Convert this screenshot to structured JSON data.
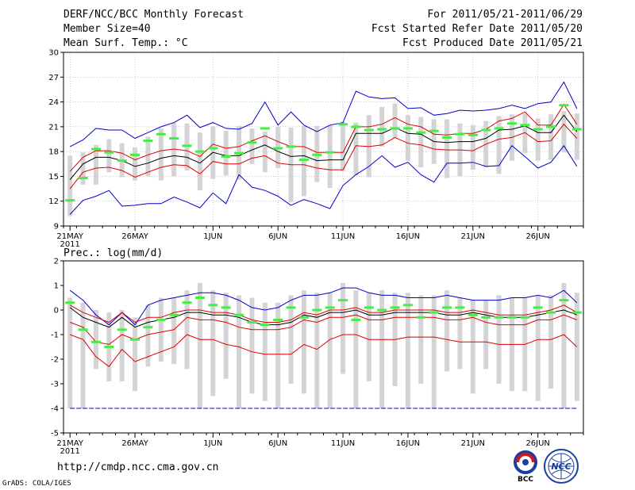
{
  "header": {
    "title": "DERF/NCC/BCC Monthly Forecast",
    "member_size": "Member Size=40",
    "variable": "Mean Surf. Temp.: °C",
    "forecast_for": "For 2011/05/21-2011/06/29",
    "started_date": "Fcst Started Refer Date 2011/05/20",
    "produced_date": "Fcst Produced Date 2011/05/21"
  },
  "precip_label": "Prec.: log(mm/d)",
  "footer": {
    "url": "http://cmdp.ncc.cma.gov.cn",
    "grads": "GrADS: COLA/IGES",
    "logo_bcc": "BCC",
    "logo_ncc": "NCC"
  },
  "colors": {
    "box": "#d4d4d6",
    "median": "#000000",
    "quartile": "#dd0000",
    "extreme": "#0000cc",
    "obs": "#44ee44",
    "grid": "#aaaaaa"
  },
  "chart_data": [
    {
      "type": "line",
      "name": "temperature",
      "ylabel": "Mean Surf. Temp.: °C",
      "ylim": [
        9,
        30
      ],
      "yticks": [
        9,
        12,
        15,
        18,
        21,
        24,
        27,
        30
      ],
      "x_days": 40,
      "xtick_labels": [
        "21MAY",
        "26MAY",
        "1JUN",
        "6JUN",
        "11JUN",
        "16JUN",
        "21JUN",
        "26JUN"
      ],
      "xtick_days": [
        0,
        5,
        11,
        16,
        21,
        26,
        31,
        36
      ],
      "year_label": "2011",
      "grid": true,
      "series": [
        {
          "name": "median",
          "values": [
            14.6,
            16.5,
            17.3,
            17.3,
            16.9,
            16.2,
            16.6,
            17.2,
            17.5,
            17.3,
            16.6,
            17.9,
            17.5,
            17.5,
            18.2,
            18.8,
            18.0,
            17.4,
            17.5,
            16.9,
            17.0,
            17.0,
            20.2,
            20.2,
            20.2,
            20.9,
            20.2,
            20.1,
            19.2,
            19.1,
            19.2,
            19.2,
            19.6,
            20.6,
            20.7,
            21.1,
            20.3,
            20.3,
            22.4,
            20.4
          ]
        },
        {
          "name": "q_upper",
          "values": [
            15.6,
            17.3,
            18.1,
            18.1,
            17.8,
            17.0,
            17.6,
            18.1,
            18.3,
            18.1,
            17.4,
            18.9,
            18.4,
            18.6,
            19.3,
            19.9,
            19.2,
            18.6,
            18.6,
            17.9,
            17.9,
            17.9,
            21.0,
            21.0,
            21.3,
            22.1,
            21.3,
            21.0,
            20.1,
            20.0,
            20.2,
            20.2,
            20.7,
            21.7,
            22.0,
            22.8,
            21.2,
            21.2,
            23.7,
            21.3
          ]
        },
        {
          "name": "q_lower",
          "values": [
            13.5,
            15.5,
            16.0,
            16.1,
            15.7,
            14.9,
            15.5,
            16.1,
            16.4,
            16.3,
            15.3,
            16.8,
            16.5,
            16.5,
            17.2,
            17.5,
            16.6,
            16.4,
            16.4,
            16.0,
            15.8,
            15.8,
            18.7,
            18.6,
            18.8,
            19.7,
            19.0,
            18.8,
            18.3,
            18.2,
            18.2,
            18.1,
            18.9,
            19.5,
            19.7,
            20.3,
            19.2,
            19.3,
            21.3,
            19.6
          ]
        },
        {
          "name": "max",
          "values": [
            18.6,
            19.4,
            20.8,
            20.6,
            20.6,
            19.6,
            20.3,
            21.0,
            21.5,
            22.4,
            20.9,
            21.5,
            20.8,
            20.7,
            21.4,
            24.0,
            21.2,
            22.8,
            21.2,
            20.4,
            21.2,
            21.5,
            25.3,
            24.6,
            24.4,
            24.5,
            23.2,
            23.3,
            22.4,
            22.6,
            23.0,
            22.9,
            23.0,
            23.2,
            23.6,
            23.2,
            23.8,
            24.0,
            26.4,
            23.2
          ]
        },
        {
          "name": "min",
          "values": [
            10.4,
            12.1,
            12.6,
            13.3,
            11.4,
            11.5,
            11.7,
            11.7,
            12.5,
            11.9,
            11.2,
            13.0,
            11.7,
            15.2,
            13.7,
            13.3,
            12.6,
            11.5,
            12.2,
            11.7,
            11.1,
            13.9,
            15.2,
            16.2,
            17.5,
            16.1,
            16.7,
            15.2,
            14.3,
            16.6,
            16.6,
            16.7,
            16.2,
            16.3,
            18.7,
            17.4,
            16.0,
            16.7,
            18.7,
            16.2
          ]
        },
        {
          "name": "box_high",
          "values": [
            17.5,
            17.9,
            18.8,
            19.5,
            19.0,
            18.5,
            19.8,
            20.8,
            21.5,
            21.4,
            20.3,
            21.0,
            20.5,
            21.1,
            20.8,
            20.4,
            21.0,
            20.9,
            21.1,
            21.1,
            21.2,
            21.6,
            21.5,
            22.4,
            23.4,
            23.8,
            22.4,
            22.2,
            21.9,
            21.9,
            21.4,
            21.2,
            21.7,
            22.3,
            22.5,
            22.6,
            22.0,
            22.5,
            22.9,
            22.6
          ]
        },
        {
          "name": "box_low",
          "values": [
            10.2,
            14.0,
            14.0,
            15.5,
            14.9,
            14.5,
            15.0,
            14.5,
            15.0,
            15.7,
            13.3,
            14.7,
            15.1,
            14.6,
            16.5,
            15.5,
            16.0,
            11.9,
            12.6,
            14.3,
            13.6,
            15.6,
            15.1,
            14.9,
            18.6,
            19.6,
            16.9,
            16.1,
            16.5,
            14.8,
            15.0,
            15.8,
            16.1,
            15.3,
            16.9,
            17.8,
            16.9,
            17.0,
            17.9,
            17.0
          ]
        },
        {
          "name": "observed",
          "values": [
            12.1,
            14.8,
            18.3,
            17.9,
            16.9,
            17.6,
            19.3,
            20.1,
            19.6,
            18.7,
            18.0,
            18.4,
            17.4,
            17.8,
            19.1,
            20.8,
            18.4,
            18.6,
            17.0,
            17.6,
            17.9,
            21.3,
            21.0,
            20.6,
            20.7,
            20.8,
            20.8,
            20.3,
            20.5,
            19.7,
            20.1,
            20.0,
            20.6,
            20.8,
            21.4,
            21.2,
            20.7,
            21.0,
            23.6,
            20.7
          ]
        }
      ]
    },
    {
      "type": "line",
      "name": "precipitation",
      "ylabel": "Prec.: log(mm/d)",
      "ylim": [
        -5,
        2
      ],
      "yticks": [
        -5,
        -4,
        -3,
        -2,
        -1,
        0,
        1,
        2
      ],
      "x_days": 40,
      "xtick_labels": [
        "21MAY",
        "26MAY",
        "1JUN",
        "6JUN",
        "11JUN",
        "16JUN",
        "21JUN",
        "26JUN"
      ],
      "xtick_days": [
        0,
        5,
        11,
        16,
        21,
        26,
        31,
        36
      ],
      "year_label": "2011",
      "grid": false,
      "series": [
        {
          "name": "median",
          "values": [
            0.1,
            -0.3,
            -0.5,
            -0.7,
            -0.3,
            -0.7,
            -0.5,
            -0.4,
            -0.3,
            -0.1,
            -0.1,
            -0.2,
            -0.2,
            -0.3,
            -0.5,
            -0.6,
            -0.6,
            -0.5,
            -0.2,
            -0.3,
            -0.1,
            -0.1,
            0.0,
            -0.2,
            -0.2,
            -0.1,
            -0.1,
            -0.1,
            -0.1,
            -0.2,
            -0.2,
            -0.1,
            -0.2,
            -0.3,
            -0.3,
            -0.3,
            -0.2,
            -0.1,
            0.0,
            -0.2
          ]
        },
        {
          "name": "q_upper",
          "values": [
            0.2,
            -0.1,
            -0.3,
            -0.5,
            -0.1,
            -0.5,
            -0.3,
            -0.3,
            -0.1,
            0.0,
            0.0,
            -0.1,
            -0.1,
            -0.2,
            -0.4,
            -0.5,
            -0.5,
            -0.4,
            -0.1,
            -0.2,
            0.0,
            0.0,
            0.1,
            -0.1,
            -0.1,
            0.0,
            0.0,
            0.0,
            0.0,
            -0.1,
            -0.1,
            0.0,
            -0.1,
            -0.2,
            -0.2,
            -0.2,
            -0.1,
            0.0,
            0.2,
            -0.1
          ]
        },
        {
          "name": "q_lower",
          "values": [
            -0.5,
            -0.7,
            -1.3,
            -1.4,
            -1.0,
            -1.2,
            -1.0,
            -0.9,
            -0.8,
            -0.3,
            -0.4,
            -0.4,
            -0.5,
            -0.7,
            -0.8,
            -0.8,
            -0.8,
            -0.7,
            -0.4,
            -0.5,
            -0.3,
            -0.3,
            -0.2,
            -0.4,
            -0.4,
            -0.3,
            -0.3,
            -0.3,
            -0.3,
            -0.4,
            -0.4,
            -0.3,
            -0.5,
            -0.6,
            -0.6,
            -0.6,
            -0.4,
            -0.4,
            -0.2,
            -0.4
          ]
        },
        {
          "name": "p10",
          "values": [
            -1.0,
            -1.2,
            -1.9,
            -2.3,
            -1.6,
            -2.1,
            -1.9,
            -1.7,
            -1.5,
            -1.0,
            -1.2,
            -1.2,
            -1.4,
            -1.5,
            -1.7,
            -1.8,
            -1.8,
            -1.8,
            -1.4,
            -1.6,
            -1.2,
            -1.0,
            -1.0,
            -1.2,
            -1.2,
            -1.2,
            -1.1,
            -1.1,
            -1.1,
            -1.2,
            -1.3,
            -1.3,
            -1.3,
            -1.4,
            -1.4,
            -1.4,
            -1.2,
            -1.2,
            -1.0,
            -1.5
          ]
        },
        {
          "name": "max",
          "values": [
            0.8,
            0.4,
            -0.2,
            -0.6,
            -0.1,
            -0.6,
            0.2,
            0.4,
            0.5,
            0.6,
            0.7,
            0.7,
            0.6,
            0.4,
            0.1,
            0.0,
            0.1,
            0.4,
            0.6,
            0.6,
            0.7,
            0.9,
            0.9,
            0.7,
            0.6,
            0.6,
            0.5,
            0.5,
            0.5,
            0.6,
            0.5,
            0.4,
            0.4,
            0.4,
            0.5,
            0.5,
            0.6,
            0.5,
            0.8,
            0.3
          ]
        },
        {
          "name": "min",
          "values": [
            -4.0,
            -4.0,
            -4.0,
            -4.0,
            -4.0,
            -4.0,
            -4.0,
            -4.0,
            -4.0,
            -4.0,
            -4.0,
            -4.0,
            -4.0,
            -4.0,
            -4.0,
            -4.0,
            -4.0,
            -4.0,
            -4.0,
            -4.0,
            -4.0,
            -4.0,
            -4.0,
            -4.0,
            -4.0,
            -4.0,
            -4.0,
            -4.0,
            -4.0,
            -4.0,
            -4.0,
            -4.0,
            -4.0,
            -4.0,
            -4.0,
            -4.0,
            -4.0,
            -4.0,
            -4.0,
            -4.0
          ]
        },
        {
          "name": "box_high",
          "values": [
            0.5,
            0.3,
            0.0,
            -0.1,
            0.0,
            -0.3,
            0.2,
            0.5,
            0.5,
            0.8,
            1.1,
            0.8,
            0.7,
            0.6,
            0.5,
            0.3,
            0.3,
            0.6,
            0.8,
            0.7,
            0.7,
            1.1,
            0.8,
            0.7,
            0.8,
            0.7,
            0.7,
            0.6,
            0.6,
            0.8,
            0.5,
            0.4,
            0.4,
            0.6,
            0.5,
            0.5,
            0.6,
            0.6,
            1.1,
            0.7
          ]
        },
        {
          "name": "box_low",
          "values": [
            -4.0,
            -4.0,
            -2.4,
            -2.9,
            -2.9,
            -3.3,
            -2.3,
            -2.1,
            -2.2,
            -2.4,
            -4.0,
            -3.5,
            -2.8,
            -4.0,
            -3.4,
            -3.7,
            -4.0,
            -3.0,
            -3.4,
            -4.0,
            -4.0,
            -2.6,
            -4.0,
            -2.9,
            -4.0,
            -3.1,
            -4.0,
            -3.0,
            -4.0,
            -2.5,
            -2.4,
            -3.4,
            -2.4,
            -3.0,
            -3.3,
            -3.3,
            -3.7,
            -3.2,
            -4.0,
            -3.7
          ]
        },
        {
          "name": "observed",
          "values": [
            0.3,
            -0.8,
            -1.3,
            -1.5,
            -0.8,
            -1.2,
            -0.7,
            -0.4,
            -0.2,
            0.3,
            0.5,
            0.2,
            0.1,
            -0.2,
            -0.5,
            -0.6,
            -0.4,
            0.1,
            -0.3,
            0.0,
            0.1,
            0.4,
            -0.4,
            0.1,
            0.0,
            0.1,
            0.2,
            -0.3,
            -0.1,
            0.1,
            0.1,
            -0.2,
            -0.3,
            -0.3,
            -0.3,
            -0.3,
            0.1,
            -0.1,
            0.4,
            -0.1
          ]
        }
      ]
    }
  ]
}
